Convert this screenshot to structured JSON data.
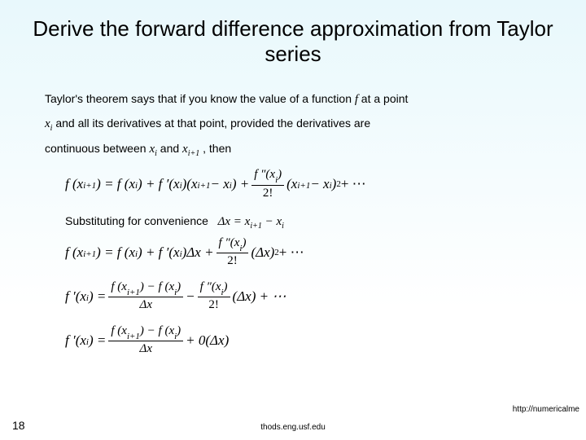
{
  "title": "Derive the forward difference approximation from Taylor series",
  "para": {
    "p1a": "Taylor's theorem says that if you know the value of a function ",
    "p1_f": " f ",
    "p1b": " at a point",
    "p2_xi": "x",
    "p2_xi_sub": "i",
    "p2a": " and all its derivatives at that point, provided the derivatives are",
    "p3a": "continuous between ",
    "p3_xi": "x",
    "p3_xi_sub": "i",
    "p3b": " and ",
    "p3_xi1": "x",
    "p3_xi1_sub": "i+1",
    "p3c": " , then"
  },
  "subst": {
    "label": "Substituting for convenience",
    "dx_lhs": "Δx = x",
    "dx_sub1": "i+1",
    "dx_mid": " − x",
    "dx_sub2": "i"
  },
  "eq1": {
    "lhs": "f (x",
    "lhs_sub": "i+1",
    "lhs2": ") = f (x",
    "lhs2_sub": "i",
    "lhs3": ") + f ′(x",
    "lhs3_sub": "i",
    "lhs4": ")(x",
    "lhs4_sub": "i+1",
    "lhs5": " − x",
    "lhs5_sub": "i",
    "lhs6": ") + ",
    "frac_num": "f ″(x",
    "frac_num_sub": "i",
    "frac_num2": ")",
    "frac_den": "2!",
    "tail1": "(x",
    "tail1_sub": "i+1",
    "tail2": " − x",
    "tail2_sub": "i",
    "tail3": ")",
    "tail_sup": "2",
    "tail4": " + ⋯"
  },
  "eq2": {
    "lhs": "f (x",
    "lhs_sub": "i+1",
    "a": ") = f (x",
    "a_sub": "i",
    "b": ") + f ′(x",
    "b_sub": "i",
    "c": ")Δx + ",
    "num": "f ″(x",
    "num_sub": "i",
    "num2": ")",
    "den": "2!",
    "d": "(Δx)",
    "d_sup": "2",
    "e": " + ⋯"
  },
  "eq3": {
    "lhs": "f ′(x",
    "lhs_sub": "i",
    "a": ") = ",
    "num": "f (x",
    "num_sub1": "i+1",
    "num_mid": ") − f (x",
    "num_sub2": "i",
    "num_end": ")",
    "den": "Δx",
    "b": " − ",
    "num2": "f ″(x",
    "num2_sub": "i",
    "num2_end": ")",
    "den2": "2!",
    "c": "(Δx) + ⋯"
  },
  "eq4": {
    "lhs": "f ′(x",
    "lhs_sub": "i",
    "a": ") = ",
    "num": "f (x",
    "num_sub1": "i+1",
    "num_mid": ") − f (x",
    "num_sub2": "i",
    "num_end": ")",
    "den": "Δx",
    "b": " + 0(Δx)"
  },
  "footer": {
    "page": "18",
    "center": "thods.eng.usf.edu",
    "right": "http://numericalme"
  }
}
